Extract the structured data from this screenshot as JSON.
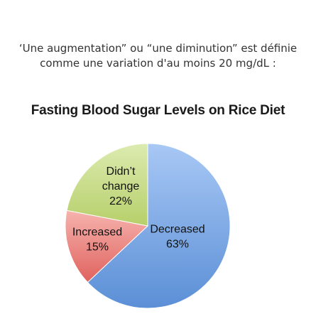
{
  "caption": {
    "line1": "‘Une augmentation” ou “une diminution” est définie",
    "line2": "comme une variation d'au moins 20 mg/dL :"
  },
  "chart_data": {
    "type": "pie",
    "title": "Fasting Blood Sugar Levels on Rice Diet",
    "slices": [
      {
        "label_lines": [
          "Decreased"
        ],
        "value": 63,
        "value_label": "63%",
        "color": "#5b8fd6",
        "color_light": "#a8c8f5"
      },
      {
        "label_lines": [
          "Increased"
        ],
        "value": 15,
        "value_label": "15%",
        "color": "#e0625e",
        "color_light": "#f6b3ae"
      },
      {
        "label_lines": [
          "Didn’t",
          "change"
        ],
        "value": 22,
        "value_label": "22%",
        "color": "#b7cf6a",
        "color_light": "#dcebb0"
      }
    ]
  }
}
